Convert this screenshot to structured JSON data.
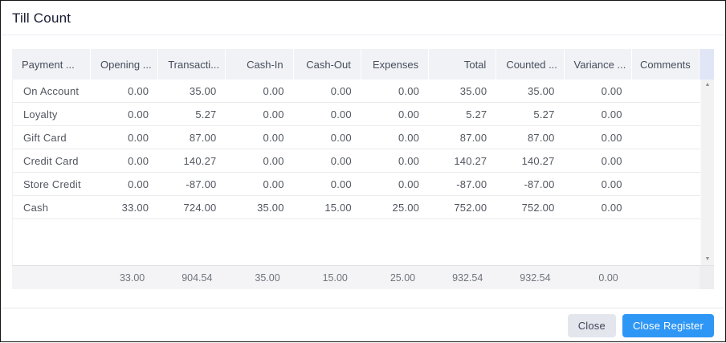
{
  "dialog": {
    "title": "Till Count",
    "buttons": {
      "close": "Close",
      "close_register": "Close Register"
    }
  },
  "colors": {
    "primary_button": "#2e96f5",
    "secondary_button": "#e4e6ed",
    "header_background": "#f0f2f5",
    "header_scroll_spacer": "#e1e6f7",
    "footer_row_background": "#f4f4f6"
  },
  "icons": {
    "scroll_up": "▲",
    "scroll_down": "▼"
  },
  "table": {
    "columns": [
      "Payment ...",
      "Opening ...",
      "Transacti...",
      "Cash-In",
      "Cash-Out",
      "Expenses",
      "Total",
      "Counted ...",
      "Variance ...",
      "Comments"
    ],
    "rows": [
      [
        "On Account",
        "0.00",
        "35.00",
        "0.00",
        "0.00",
        "0.00",
        "35.00",
        "35.00",
        "0.00",
        ""
      ],
      [
        "Loyalty",
        "0.00",
        "5.27",
        "0.00",
        "0.00",
        "0.00",
        "5.27",
        "5.27",
        "0.00",
        ""
      ],
      [
        "Gift Card",
        "0.00",
        "87.00",
        "0.00",
        "0.00",
        "0.00",
        "87.00",
        "87.00",
        "0.00",
        ""
      ],
      [
        "Credit Card",
        "0.00",
        "140.27",
        "0.00",
        "0.00",
        "0.00",
        "140.27",
        "140.27",
        "0.00",
        ""
      ],
      [
        "Store Credit",
        "0.00",
        "-87.00",
        "0.00",
        "0.00",
        "0.00",
        "-87.00",
        "-87.00",
        "0.00",
        ""
      ],
      [
        "Cash",
        "33.00",
        "724.00",
        "35.00",
        "15.00",
        "25.00",
        "752.00",
        "752.00",
        "0.00",
        ""
      ]
    ],
    "footer": [
      "",
      "33.00",
      "904.54",
      "35.00",
      "15.00",
      "25.00",
      "932.54",
      "932.54",
      "0.00",
      ""
    ]
  }
}
